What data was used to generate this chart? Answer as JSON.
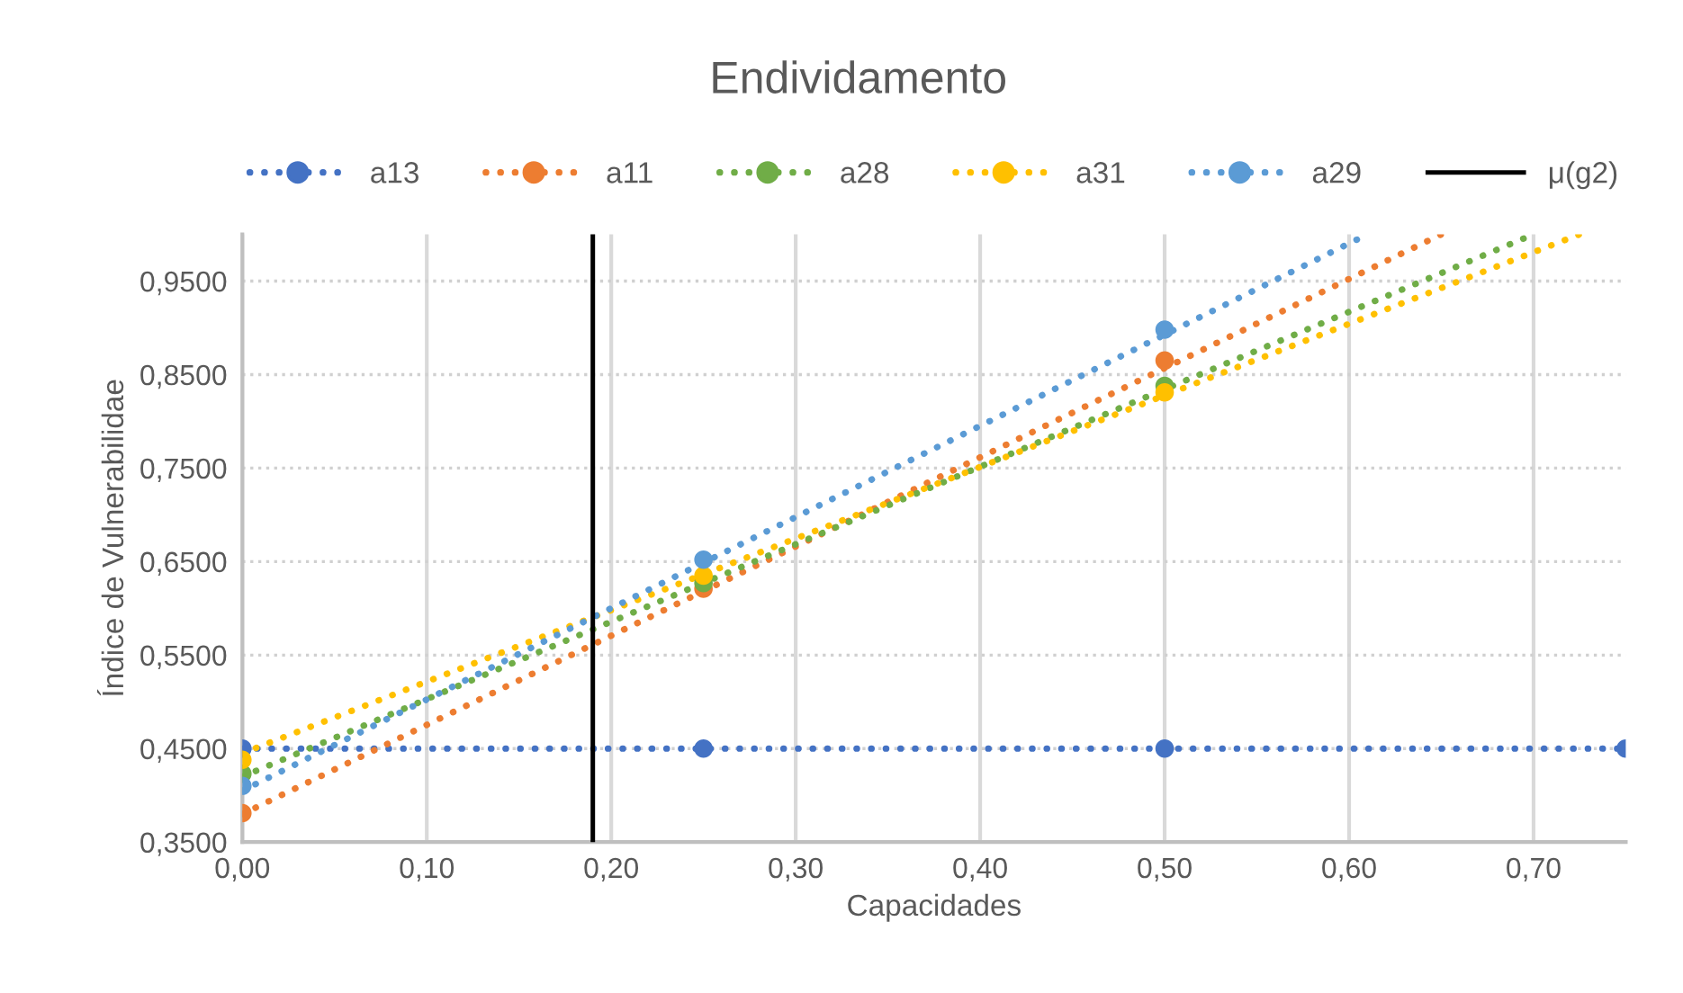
{
  "chart_data": {
    "type": "scatter",
    "title": "Endividamento",
    "xlabel": "Capacidades",
    "ylabel": "Índice de Vulnerabilidae",
    "series": [
      {
        "name": "a13",
        "color": "#4472c4",
        "x": [
          0,
          0.25,
          0.5,
          0.75
        ],
        "values": [
          0.45,
          0.45,
          0.45,
          0.45
        ]
      },
      {
        "name": "a11",
        "color": "#ed7d31",
        "x": [
          0,
          0.25,
          0.5
        ],
        "values": [
          0.381,
          0.621,
          0.865
        ]
      },
      {
        "name": "a28",
        "color": "#70ad47",
        "x": [
          0,
          0.25,
          0.5
        ],
        "values": [
          0.423,
          0.627,
          0.838
        ]
      },
      {
        "name": "a31",
        "color": "#ffc000",
        "x": [
          0,
          0.25,
          0.5
        ],
        "values": [
          0.438,
          0.635,
          0.831
        ]
      },
      {
        "name": "a29",
        "color": "#5b9bd5",
        "x": [
          0,
          0.25,
          0.5
        ],
        "values": [
          0.41,
          0.652,
          0.898
        ]
      },
      {
        "type": "line",
        "color": "#4472c4",
        "line_style": "dotted",
        "x": [
          0,
          0.75
        ],
        "values": [
          0.45,
          0.45
        ]
      },
      {
        "type": "line",
        "color": "#ed7d31",
        "line_style": "dotted",
        "x": [
          0,
          0.65
        ],
        "values": [
          0.38,
          1.0
        ]
      },
      {
        "type": "line",
        "color": "#70ad47",
        "line_style": "dotted",
        "x": [
          0,
          0.7
        ],
        "values": [
          0.42,
          1.0
        ]
      },
      {
        "type": "line",
        "color": "#ffc000",
        "line_style": "dotted",
        "x": [
          0,
          0.725
        ],
        "values": [
          0.445,
          1.0
        ]
      },
      {
        "type": "line",
        "color": "#5b9bd5",
        "line_style": "dotted",
        "x": [
          0,
          0.61
        ],
        "values": [
          0.405,
          1.0
        ]
      }
    ],
    "ref_lines": [
      {
        "axis": "x",
        "value": 0.19,
        "label": "μ(g2)",
        "color": "#000000",
        "line_style": "solid"
      }
    ],
    "xlim": [
      0,
      0.75
    ],
    "ylim": [
      0.35,
      1.0
    ],
    "xticks": [
      {
        "value": 0,
        "label": "0,00"
      },
      {
        "value": 0.1,
        "label": "0,10"
      },
      {
        "value": 0.2,
        "label": "0,20"
      },
      {
        "value": 0.3,
        "label": "0,30"
      },
      {
        "value": 0.4,
        "label": "0,40"
      },
      {
        "value": 0.5,
        "label": "0,50"
      },
      {
        "value": 0.6,
        "label": "0,60"
      },
      {
        "value": 0.7,
        "label": "0,70"
      }
    ],
    "yticks": [
      {
        "value": 0.35,
        "label": "0,3500"
      },
      {
        "value": 0.45,
        "label": "0,4500"
      },
      {
        "value": 0.55,
        "label": "0,5500"
      },
      {
        "value": 0.65,
        "label": "0,6500"
      },
      {
        "value": 0.75,
        "label": "0,7500"
      },
      {
        "value": 0.85,
        "label": "0,8500"
      },
      {
        "value": 0.95,
        "label": "0,9500"
      }
    ],
    "grid": true,
    "legend": "top"
  }
}
